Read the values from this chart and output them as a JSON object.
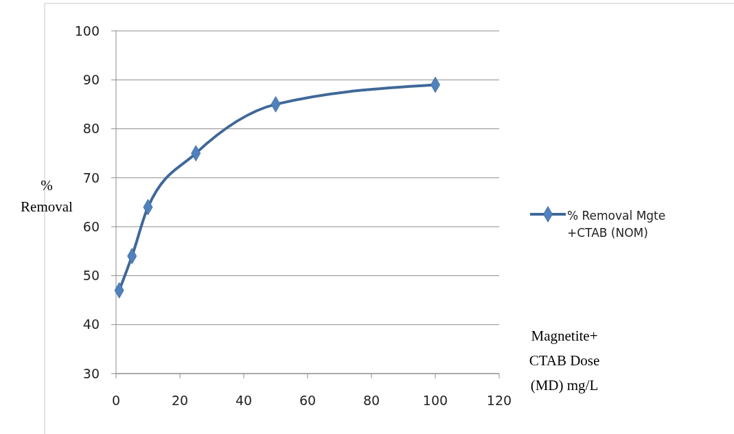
{
  "chart_data": {
    "type": "line",
    "xlabel": "Magnetite+ CTAB Dose (MD) mg/L",
    "ylabel": "% Removal",
    "x": [
      1,
      5,
      10,
      25,
      50,
      100
    ],
    "series": [
      {
        "name": "% Removal Mgte +CTAB (NOM)",
        "color": "#4f81bd",
        "values": [
          47,
          54,
          64,
          75,
          85,
          89
        ]
      }
    ],
    "xlim": [
      0,
      120
    ],
    "xticks": [
      0,
      20,
      40,
      60,
      80,
      100,
      120
    ],
    "ylim": [
      30,
      100
    ],
    "yticks": [
      30,
      40,
      50,
      60,
      70,
      80,
      90,
      100
    ],
    "grid": "y",
    "legend": "right",
    "marker": "diamond",
    "line_style": "solid"
  }
}
